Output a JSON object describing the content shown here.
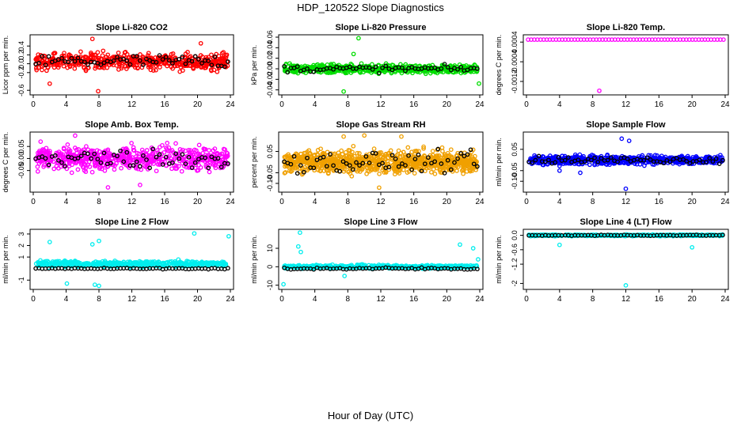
{
  "page": {
    "title": "HDP_120522  Slope Diagnostics",
    "xlabel": "Hour of Day (UTC)"
  },
  "colors": {
    "red": "#ff0000",
    "green": "#00dd00",
    "magenta": "#ff00ff",
    "orange": "#f0a000",
    "blue": "#0000ff",
    "cyan": "#00eeee",
    "black": "#000000"
  },
  "chart_data": [
    {
      "type": "scatter",
      "title": "Slope Li-820 CO2",
      "ylabel": "Licor ppm per min.",
      "color": "#ff0000",
      "xlim": [
        0,
        24
      ],
      "ylim": [
        -0.65,
        0.6
      ],
      "xticks": [
        "0",
        "4",
        "8",
        "12",
        "16",
        "20",
        "24"
      ],
      "yticks": [
        {
          "v": 0.4,
          "label": "0.4"
        },
        {
          "v": 0.2,
          "label": "0.2"
        },
        {
          "v": 0.0,
          "label": "0.0"
        },
        {
          "v": -0.2,
          "label": "-0.2"
        },
        {
          "v": -0.6,
          "label": "-0.6"
        }
      ],
      "series": [
        {
          "name": "all",
          "n": 520,
          "spread": 0.18,
          "center": 0.05,
          "clip": 0.55
        }
      ],
      "black_spread": 0.15,
      "outliers": [
        {
          "x": 7.2,
          "y": 0.56
        },
        {
          "x": 7.9,
          "y": -0.62
        },
        {
          "x": 20.4,
          "y": 0.46
        },
        {
          "x": 2.0,
          "y": -0.45
        }
      ]
    },
    {
      "type": "scatter",
      "title": "Slope Li-820 Pressure",
      "ylabel": "kPa per min.",
      "color": "#00dd00",
      "xlim": [
        0,
        24
      ],
      "ylim": [
        -0.045,
        0.06
      ],
      "xticks": [
        "0",
        "4",
        "8",
        "12",
        "16",
        "20",
        "24"
      ],
      "yticks": [
        {
          "v": 0.06,
          "label": "0.06"
        },
        {
          "v": 0.04,
          "label": "0.04"
        },
        {
          "v": 0.02,
          "label": "0.02"
        },
        {
          "v": 0.0,
          "label": "0.00"
        },
        {
          "v": -0.02,
          "label": "-0.02"
        },
        {
          "v": -0.04,
          "label": "-0.04"
        }
      ],
      "series": [
        {
          "name": "all",
          "n": 560,
          "spread": 0.008,
          "center": 0.0,
          "clip": 0.04
        }
      ],
      "black_spread": 0.006,
      "outliers": [
        {
          "x": 9.3,
          "y": 0.058
        },
        {
          "x": 7.5,
          "y": -0.043
        },
        {
          "x": 8.7,
          "y": 0.028
        },
        {
          "x": 23.9,
          "y": -0.028
        }
      ]
    },
    {
      "type": "scatter",
      "title": "Slope Li-820 Temp.",
      "ylabel": "degrees C per min.",
      "color": "#ff00ff",
      "xlim": [
        0,
        24
      ],
      "ylim": [
        -0.00165,
        0.0006
      ],
      "xticks": [
        "0",
        "4",
        "8",
        "12",
        "16",
        "20",
        "24"
      ],
      "yticks": [
        {
          "v": 0.0004,
          "label": "0.0004"
        },
        {
          "v": -0.0004,
          "label": "-0.0004"
        },
        {
          "v": -0.0012,
          "label": "-0.0012"
        }
      ],
      "series": [
        {
          "name": "all",
          "n": 0,
          "spread": 0.0,
          "center": 0.0,
          "clip": 0.0
        }
      ],
      "flat_line": {
        "y": 0.0005,
        "count": 64
      },
      "black_spread": 0.0,
      "outliers": [
        {
          "x": 8.8,
          "y": -0.00158
        }
      ]
    },
    {
      "type": "scatter",
      "title": "Slope Amb. Box Temp.",
      "ylabel": "degrees C per min.",
      "color": "#ff00ff",
      "xlim": [
        0,
        24
      ],
      "ylim": [
        -0.13,
        0.1
      ],
      "xticks": [
        "0",
        "4",
        "8",
        "12",
        "16",
        "20",
        "24"
      ],
      "yticks": [
        {
          "v": 0.05,
          "label": "0.05"
        },
        {
          "v": 0.0,
          "label": "0.00"
        },
        {
          "v": -0.05,
          "label": "-0.05"
        }
      ],
      "series": [
        {
          "name": "all",
          "n": 620,
          "spread": 0.045,
          "center": 0.0,
          "clip": 0.1
        }
      ],
      "black_spread": 0.04,
      "outliers": [
        {
          "x": 5.1,
          "y": 0.095
        },
        {
          "x": 9.1,
          "y": -0.12
        },
        {
          "x": 13.0,
          "y": -0.11
        },
        {
          "x": 0.9,
          "y": 0.07
        }
      ]
    },
    {
      "type": "scatter",
      "title": "Slope Gas Stream RH",
      "ylabel": "percent per min.",
      "color": "#f0a000",
      "xlim": [
        0,
        24
      ],
      "ylim": [
        -0.13,
        0.13
      ],
      "xticks": [
        "0",
        "4",
        "8",
        "12",
        "16",
        "20",
        "24"
      ],
      "yticks": [
        {
          "v": 0.05,
          "label": "0.05"
        },
        {
          "v": -0.05,
          "label": "-0.05"
        },
        {
          "v": -0.1,
          "label": "-0.10"
        }
      ],
      "series": [
        {
          "name": "all",
          "n": 900,
          "spread": 0.05,
          "center": 0.0,
          "clip": 0.12
        }
      ],
      "black_spread": 0.045,
      "outliers": [
        {
          "x": 7.5,
          "y": 0.12
        },
        {
          "x": 10.0,
          "y": 0.125
        },
        {
          "x": 11.8,
          "y": -0.12
        },
        {
          "x": 14.5,
          "y": 0.12
        }
      ]
    },
    {
      "type": "scatter",
      "title": "Slope Sample Flow",
      "ylabel": "ml/min per min.",
      "color": "#0000ff",
      "xlim": [
        0,
        24
      ],
      "ylim": [
        -0.14,
        0.12
      ],
      "xticks": [
        "0",
        "4",
        "8",
        "12",
        "16",
        "20",
        "24"
      ],
      "yticks": [
        {
          "v": 0.05,
          "label": "0.05"
        },
        {
          "v": -0.05,
          "label": "-0.05"
        },
        {
          "v": -0.1,
          "label": "-0.10"
        }
      ],
      "series": [
        {
          "name": "all",
          "n": 620,
          "spread": 0.02,
          "center": 0.0,
          "clip": 0.11
        }
      ],
      "black_spread": 0.015,
      "outliers": [
        {
          "x": 12.0,
          "y": -0.135
        },
        {
          "x": 11.5,
          "y": 0.1
        },
        {
          "x": 12.4,
          "y": 0.09
        },
        {
          "x": 4.0,
          "y": -0.05
        },
        {
          "x": 6.5,
          "y": -0.06
        }
      ]
    },
    {
      "type": "scatter",
      "title": "Slope Line 2 Flow",
      "ylabel": "ml/min per min.",
      "color": "#00eeee",
      "xlim": [
        0,
        24
      ],
      "ylim": [
        -1.6,
        3.2
      ],
      "xticks": [
        "0",
        "4",
        "8",
        "12",
        "16",
        "20",
        "24"
      ],
      "yticks": [
        {
          "v": 3,
          "label": "3"
        },
        {
          "v": 2,
          "label": "2"
        },
        {
          "v": 1,
          "label": "1"
        },
        {
          "v": -1,
          "label": "-1"
        }
      ],
      "series": [
        {
          "name": "all",
          "n": 480,
          "spread": 0.25,
          "center": 0.4,
          "clip": 1.5
        }
      ],
      "black_spread": 0.05,
      "black_center": 0.0,
      "outliers": [
        {
          "x": 2.0,
          "y": 2.3
        },
        {
          "x": 7.2,
          "y": 2.1
        },
        {
          "x": 8.0,
          "y": 2.4
        },
        {
          "x": 19.6,
          "y": 3.05
        },
        {
          "x": 23.8,
          "y": 2.8
        },
        {
          "x": 4.1,
          "y": -1.3
        },
        {
          "x": 7.5,
          "y": -1.4
        },
        {
          "x": 8.0,
          "y": -1.5
        }
      ]
    },
    {
      "type": "scatter",
      "title": "Slope Line 3 Flow",
      "ylabel": "ml/min per min.",
      "color": "#00eeee",
      "xlim": [
        0,
        24
      ],
      "ylim": [
        -11,
        19
      ],
      "xticks": [
        "0",
        "4",
        "8",
        "12",
        "16",
        "20",
        "24"
      ],
      "yticks": [
        {
          "v": 10,
          "label": "10"
        },
        {
          "v": 0,
          "label": "0"
        },
        {
          "v": -10,
          "label": "-10"
        }
      ],
      "series": [
        {
          "name": "all",
          "n": 480,
          "spread": 0.9,
          "center": 0.0,
          "clip": 4
        }
      ],
      "black_spread": 0.6,
      "black_center": -1.0,
      "outliers": [
        {
          "x": 2.2,
          "y": 18.5
        },
        {
          "x": 2.0,
          "y": 11
        },
        {
          "x": 2.3,
          "y": 8
        },
        {
          "x": 0.2,
          "y": -9.5
        },
        {
          "x": 7.6,
          "y": -5
        },
        {
          "x": 21.6,
          "y": 12
        },
        {
          "x": 23.2,
          "y": 10
        },
        {
          "x": 23.8,
          "y": 4
        }
      ]
    },
    {
      "type": "scatter",
      "title": "Slope Line 4 (LT) Flow",
      "ylabel": "ml/min per min.",
      "color": "#00eeee",
      "xlim": [
        0,
        24
      ],
      "ylim": [
        -2.15,
        0.15
      ],
      "xticks": [
        "0",
        "4",
        "8",
        "12",
        "16",
        "20",
        "24"
      ],
      "yticks": [
        {
          "v": 0,
          "label": "0.0"
        },
        {
          "v": -0.6,
          "label": "-0.6"
        },
        {
          "v": -1.2,
          "label": "-1.2"
        },
        {
          "v": -2,
          "label": "-2"
        }
      ],
      "series": [
        {
          "name": "all",
          "n": 480,
          "spread": 0.03,
          "center": 0.0,
          "clip": 0.1
        }
      ],
      "black_spread": 0.02,
      "black_center": 0.0,
      "outliers": [
        {
          "x": 12.0,
          "y": -2.08
        },
        {
          "x": 4.0,
          "y": -0.4
        },
        {
          "x": 20.0,
          "y": -0.5
        }
      ]
    }
  ]
}
